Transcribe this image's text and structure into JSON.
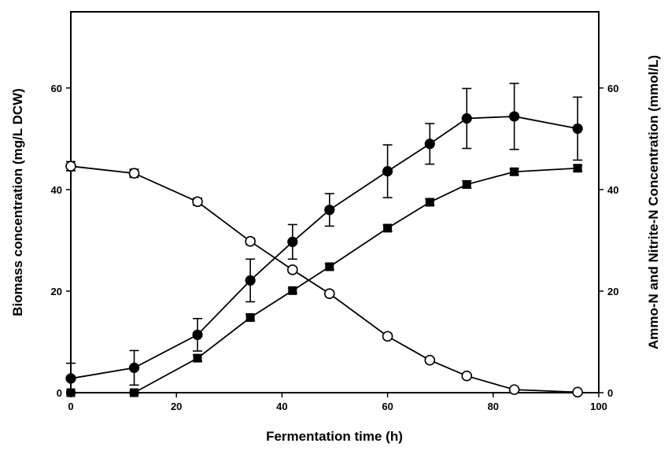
{
  "chart_data": {
    "type": "line",
    "xlabel": "Fermentation time (h)",
    "ylabel_left": "Biomass concentration (mg/L DCW)",
    "ylabel_right": "Ammo-N and Nitrite-N Concentration (mmol/L)",
    "xlim": [
      0,
      100
    ],
    "ylim_left": [
      0,
      75
    ],
    "ylim_right": [
      0,
      75
    ],
    "x_ticks": [
      0,
      20,
      40,
      60,
      80,
      100
    ],
    "y_ticks_left": [
      0,
      20,
      40,
      60
    ],
    "y_ticks_right": [
      0,
      20,
      40,
      60
    ],
    "x_tick_labels": [
      "0",
      "20",
      "40",
      "60",
      "80",
      "100"
    ],
    "y_tick_labels_left": [
      "0",
      "20",
      "40",
      "60"
    ],
    "y_tick_labels_right": [
      "0",
      "20",
      "40",
      "60"
    ],
    "grid": false,
    "series": [
      {
        "marker": "filled-circle",
        "axis": "left",
        "x": [
          0,
          12,
          24,
          34,
          42,
          49,
          60,
          68,
          75,
          84,
          96
        ],
        "y": [
          2.8,
          4.9,
          11.4,
          22.1,
          29.7,
          36.0,
          43.6,
          49.0,
          54.0,
          54.4,
          52.0
        ],
        "err": [
          3.0,
          3.4,
          3.2,
          4.2,
          3.4,
          3.2,
          5.2,
          4.0,
          5.9,
          6.5,
          6.2
        ]
      },
      {
        "marker": "filled-square",
        "axis": "right",
        "x": [
          0,
          12,
          24,
          34,
          42,
          49,
          60,
          68,
          75,
          84,
          96
        ],
        "y": [
          0.0,
          0.0,
          6.8,
          14.8,
          20.1,
          24.8,
          32.4,
          37.5,
          41.0,
          43.5,
          44.2
        ],
        "err": [
          0.2,
          0.3,
          0.6,
          0.6,
          0.5,
          0.6,
          0.6,
          0.6,
          0.7,
          0.6,
          0.6
        ]
      },
      {
        "marker": "open-circle",
        "axis": "right",
        "x": [
          0,
          12,
          24,
          34,
          42,
          49,
          60,
          68,
          75,
          84,
          96
        ],
        "y": [
          44.6,
          43.2,
          37.6,
          29.8,
          24.2,
          19.5,
          11.1,
          6.4,
          3.3,
          0.6,
          0.1
        ],
        "err": [
          0.9,
          0.8,
          0.7,
          0.6,
          0.5,
          0.5,
          0.5,
          0.4,
          0.3,
          0.2,
          0.1
        ]
      }
    ]
  }
}
